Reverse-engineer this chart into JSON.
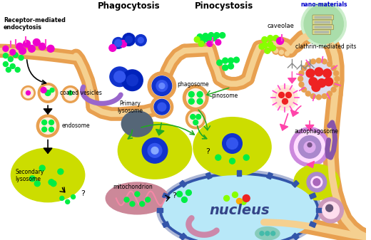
{
  "background_color": "#ffffff",
  "membrane_color": "#E8A050",
  "membrane_inner_color": "#F5D090",
  "lysosome_color": "#CCDD00",
  "lysosome_color2": "#AAEE00",
  "nucleus_fill": "#B8E8F8",
  "nucleus_border": "#3355AA",
  "phagosome_color": "#1133CC",
  "phagosome_light": "#3355EE",
  "mitochondria_color": "#CC8899",
  "mitochondria_inner": "#EE88AA",
  "autophagosome_color": "#AA88CC",
  "dark_organelle_color": "#556677",
  "green_np": "#00EE44",
  "green_np2": "#88FF00",
  "magenta_np": "#EE00CC",
  "red_np": "#EE2222",
  "yellow_np": "#FFEE00",
  "labels": {
    "phagocytosis": "Phagocytosis",
    "pinocytosis": "Pinocystosis",
    "receptor": "Receptor-mediated\nendocytosis",
    "coated": "coated vesicles",
    "endosome": "endosome",
    "primary_lysosome": "Primary\nlysosome",
    "secondary_lysosome": "Secondary\nlysosome",
    "mitochondrion": "mitochondrion",
    "phagosome": "phagosome",
    "pinosome": "pinosome",
    "caveolae": "caveolae",
    "clathrin": "clathrin-mediated pits",
    "nano": "nano-materials",
    "nucleus": "nucleus",
    "autophagosome": "autophagosome"
  },
  "figsize": [
    5.2,
    3.37
  ],
  "dpi": 100
}
